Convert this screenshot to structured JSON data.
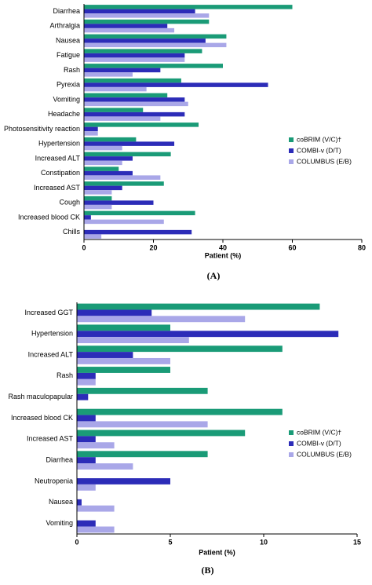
{
  "chart_data": [
    {
      "type": "hbar",
      "panel_label": "(A)",
      "x_label": "Patient (%)",
      "categories": [
        "Diarrhea",
        "Arthralgia",
        "Nausea",
        "Fatigue",
        "Rash",
        "Pyrexia",
        "Vomiting",
        "Headache",
        "Photosensitivity reaction",
        "Hypertension",
        "Increased ALT",
        "Constipation",
        "Increased AST",
        "Cough",
        "Increased blood CK",
        "Chills"
      ],
      "series": [
        {
          "name": "coBRIM (V/C)†",
          "color": "#1a9b77",
          "values": [
            60,
            36,
            41,
            34,
            40,
            28,
            24,
            17,
            33,
            15,
            25,
            10,
            23,
            8,
            32,
            0
          ]
        },
        {
          "name": "COMBI-v (D/T)",
          "color": "#2c2cb8",
          "values": [
            32,
            24,
            35,
            29,
            22,
            53,
            29,
            29,
            4,
            26,
            14,
            14,
            11,
            20,
            2,
            31
          ]
        },
        {
          "name": "COLUMBUS (E/B)",
          "color": "#a9a7e8",
          "values": [
            36,
            26,
            41,
            29,
            14,
            18,
            30,
            22,
            4,
            11,
            11,
            22,
            8,
            8,
            23,
            5
          ]
        }
      ],
      "xlim": [
        0,
        80
      ],
      "xticks": [
        0,
        20,
        40,
        60,
        80
      ]
    },
    {
      "type": "hbar",
      "panel_label": "(B)",
      "x_label": "Patient (%)",
      "categories": [
        "Increased GGT",
        "Hypertension",
        "Increased ALT",
        "Rash",
        "Rash maculopapular",
        "Increased blood CK",
        "Increased AST",
        "Diarrhea",
        "Neutropenia",
        "Nausea",
        "Vomiting"
      ],
      "series": [
        {
          "name": "coBRIM (V/C)†",
          "color": "#1a9b77",
          "values": [
            13,
            5,
            11,
            5,
            7,
            11,
            9,
            7,
            0,
            0,
            0
          ]
        },
        {
          "name": "COMBI-v (D/T)",
          "color": "#2c2cb8",
          "values": [
            4,
            14,
            3,
            1,
            0.6,
            1,
            1,
            1,
            5,
            0.25,
            1
          ]
        },
        {
          "name": "COLUMBUS (E/B)",
          "color": "#a9a7e8",
          "values": [
            9,
            6,
            5,
            1,
            0,
            7,
            2,
            3,
            1,
            2,
            2
          ]
        }
      ],
      "xlim": [
        0,
        15
      ],
      "xticks": [
        0,
        5,
        10,
        15
      ]
    }
  ]
}
